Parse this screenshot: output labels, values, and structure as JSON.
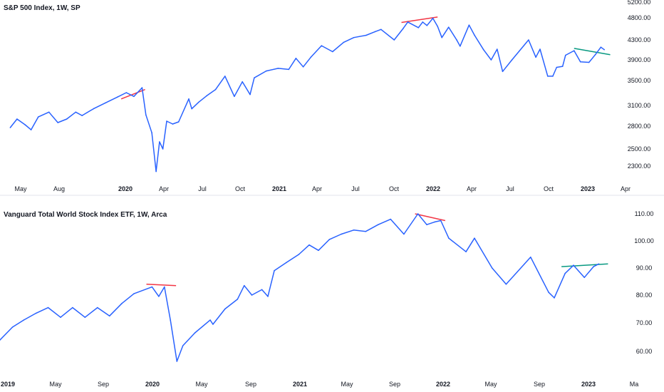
{
  "chart_data": [
    {
      "type": "line",
      "title": "S&P 500 Index, 1W, SP",
      "y_ticks": [
        "2300.00",
        "2500.00",
        "2800.00",
        "3100.00",
        "3500.00",
        "3900.00",
        "4300.00",
        "4800.00",
        "5200.00"
      ],
      "x_ticks": [
        {
          "label": "May",
          "bold": false
        },
        {
          "label": "Aug",
          "bold": false
        },
        {
          "label": "2020",
          "bold": true
        },
        {
          "label": "Apr",
          "bold": false
        },
        {
          "label": "Jul",
          "bold": false
        },
        {
          "label": "Oct",
          "bold": false
        },
        {
          "label": "2021",
          "bold": true
        },
        {
          "label": "Apr",
          "bold": false
        },
        {
          "label": "Jul",
          "bold": false
        },
        {
          "label": "Oct",
          "bold": false
        },
        {
          "label": "2022",
          "bold": true
        },
        {
          "label": "Apr",
          "bold": false
        },
        {
          "label": "Jul",
          "bold": false
        },
        {
          "label": "Oct",
          "bold": false
        },
        {
          "label": "2023",
          "bold": true
        },
        {
          "label": "Apr",
          "bold": false
        }
      ],
      "series": [
        {
          "color": "#2962ff",
          "points": [
            [
              "2019-04-15",
              2780
            ],
            [
              "2019-05-01",
              2900
            ],
            [
              "2019-05-20",
              2820
            ],
            [
              "2019-06-03",
              2750
            ],
            [
              "2019-06-20",
              2930
            ],
            [
              "2019-07-15",
              3000
            ],
            [
              "2019-08-05",
              2850
            ],
            [
              "2019-08-26",
              2900
            ],
            [
              "2019-09-16",
              3000
            ],
            [
              "2019-10-01",
              2950
            ],
            [
              "2019-10-28",
              3050
            ],
            [
              "2019-11-25",
              3140
            ],
            [
              "2019-12-23",
              3230
            ],
            [
              "2020-01-13",
              3300
            ],
            [
              "2020-01-31",
              3240
            ],
            [
              "2020-02-19",
              3380
            ],
            [
              "2020-02-28",
              2960
            ],
            [
              "2020-03-13",
              2710
            ],
            [
              "2020-03-23",
              2240
            ],
            [
              "2020-03-31",
              2590
            ],
            [
              "2020-04-08",
              2500
            ],
            [
              "2020-04-17",
              2870
            ],
            [
              "2020-05-01",
              2830
            ],
            [
              "2020-05-15",
              2860
            ],
            [
              "2020-06-08",
              3200
            ],
            [
              "2020-06-15",
              3050
            ],
            [
              "2020-07-01",
              3150
            ],
            [
              "2020-07-20",
              3250
            ],
            [
              "2020-08-10",
              3350
            ],
            [
              "2020-09-01",
              3580
            ],
            [
              "2020-09-23",
              3240
            ],
            [
              "2020-10-12",
              3480
            ],
            [
              "2020-10-30",
              3270
            ],
            [
              "2020-11-09",
              3550
            ],
            [
              "2020-12-07",
              3680
            ],
            [
              "2021-01-04",
              3730
            ],
            [
              "2021-01-29",
              3710
            ],
            [
              "2021-02-15",
              3930
            ],
            [
              "2021-03-04",
              3760
            ],
            [
              "2021-03-22",
              3950
            ],
            [
              "2021-04-16",
              4180
            ],
            [
              "2021-05-12",
              4060
            ],
            [
              "2021-06-07",
              4250
            ],
            [
              "2021-07-01",
              4350
            ],
            [
              "2021-07-30",
              4400
            ],
            [
              "2021-08-20",
              4480
            ],
            [
              "2021-09-03",
              4530
            ],
            [
              "2021-10-04",
              4300
            ],
            [
              "2021-10-25",
              4550
            ],
            [
              "2021-11-05",
              4700
            ],
            [
              "2021-11-30",
              4570
            ],
            [
              "2021-12-10",
              4700
            ],
            [
              "2021-12-20",
              4620
            ],
            [
              "2022-01-03",
              4790
            ],
            [
              "2022-01-14",
              4600
            ],
            [
              "2022-01-24",
              4350
            ],
            [
              "2022-02-09",
              4580
            ],
            [
              "2022-02-28",
              4300
            ],
            [
              "2022-03-08",
              4170
            ],
            [
              "2022-03-29",
              4630
            ],
            [
              "2022-04-11",
              4400
            ],
            [
              "2022-05-02",
              4100
            ],
            [
              "2022-05-20",
              3900
            ],
            [
              "2022-06-03",
              4110
            ],
            [
              "2022-06-16",
              3670
            ],
            [
              "2022-07-08",
              3900
            ],
            [
              "2022-08-16",
              4300
            ],
            [
              "2022-09-02",
              3950
            ],
            [
              "2022-09-12",
              4110
            ],
            [
              "2022-09-30",
              3580
            ],
            [
              "2022-10-12",
              3580
            ],
            [
              "2022-10-21",
              3750
            ],
            [
              "2022-11-04",
              3770
            ],
            [
              "2022-11-11",
              3990
            ],
            [
              "2022-12-01",
              4080
            ],
            [
              "2022-12-16",
              3860
            ],
            [
              "2023-01-05",
              3850
            ],
            [
              "2023-01-20",
              4000
            ],
            [
              "2023-02-02",
              4150
            ],
            [
              "2023-02-10",
              4100
            ]
          ]
        }
      ],
      "trendlines": [
        {
          "color": "#f23645",
          "from": [
            "2020-01-01",
            3200
          ],
          "to": [
            "2020-02-26",
            3350
          ]
        },
        {
          "color": "#f23645",
          "from": [
            "2021-10-21",
            4690
          ],
          "to": [
            "2022-01-14",
            4820
          ]
        },
        {
          "color": "#089981",
          "from": [
            "2022-12-01",
            4125
          ],
          "to": [
            "2023-02-24",
            4000
          ]
        }
      ]
    },
    {
      "type": "line",
      "title": "Vanguard Total World Stock Index ETF, 1W, Arca",
      "y_ticks": [
        "60.00",
        "70.00",
        "80.00",
        "90.00",
        "100.00",
        "110.00"
      ],
      "x_ticks": [
        {
          "label": "2019",
          "bold": true
        },
        {
          "label": "May",
          "bold": false
        },
        {
          "label": "Sep",
          "bold": false
        },
        {
          "label": "2020",
          "bold": true
        },
        {
          "label": "May",
          "bold": false
        },
        {
          "label": "Sep",
          "bold": false
        },
        {
          "label": "2021",
          "bold": true
        },
        {
          "label": "May",
          "bold": false
        },
        {
          "label": "Sep",
          "bold": false
        },
        {
          "label": "2022",
          "bold": true
        },
        {
          "label": "May",
          "bold": false
        },
        {
          "label": "Sep",
          "bold": false
        },
        {
          "label": "2023",
          "bold": true
        },
        {
          "label": "Ma",
          "bold": false
        }
      ],
      "series": [
        {
          "color": "#2962ff",
          "points": [
            [
              "2019-01-01",
              64.0
            ],
            [
              "2019-02-01",
              68.5
            ],
            [
              "2019-03-01",
              71.0
            ],
            [
              "2019-04-01",
              73.5
            ],
            [
              "2019-05-01",
              75.5
            ],
            [
              "2019-06-01",
              72.0
            ],
            [
              "2019-07-01",
              75.5
            ],
            [
              "2019-08-01",
              72.0
            ],
            [
              "2019-09-01",
              75.5
            ],
            [
              "2019-10-01",
              72.5
            ],
            [
              "2019-11-01",
              77.0
            ],
            [
              "2019-12-01",
              80.5
            ],
            [
              "2020-01-15",
              83.0
            ],
            [
              "2020-02-01",
              79.5
            ],
            [
              "2020-02-15",
              83.0
            ],
            [
              "2020-03-01",
              71.0
            ],
            [
              "2020-03-17",
              56.5
            ],
            [
              "2020-04-01",
              62.0
            ],
            [
              "2020-05-01",
              66.5
            ],
            [
              "2020-06-08",
              71.0
            ],
            [
              "2020-06-15",
              69.5
            ],
            [
              "2020-07-15",
              75.0
            ],
            [
              "2020-08-15",
              78.5
            ],
            [
              "2020-09-01",
              83.5
            ],
            [
              "2020-09-20",
              80.0
            ],
            [
              "2020-10-15",
              82.0
            ],
            [
              "2020-10-30",
              79.5
            ],
            [
              "2020-11-15",
              89.0
            ],
            [
              "2020-12-15",
              92.0
            ],
            [
              "2021-01-15",
              95.0
            ],
            [
              "2021-02-10",
              98.5
            ],
            [
              "2021-03-05",
              96.5
            ],
            [
              "2021-04-01",
              100.5
            ],
            [
              "2021-05-01",
              102.5
            ],
            [
              "2021-06-01",
              104.0
            ],
            [
              "2021-07-01",
              103.5
            ],
            [
              "2021-08-01",
              106.0
            ],
            [
              "2021-09-01",
              108.0
            ],
            [
              "2021-10-04",
              102.5
            ],
            [
              "2021-11-08",
              110.0
            ],
            [
              "2021-11-30",
              106.0
            ],
            [
              "2021-12-20",
              107.0
            ],
            [
              "2022-01-04",
              107.5
            ],
            [
              "2022-01-24",
              101.0
            ],
            [
              "2022-03-08",
              96.0
            ],
            [
              "2022-03-29",
              101.0
            ],
            [
              "2022-05-12",
              90.0
            ],
            [
              "2022-06-16",
              84.0
            ],
            [
              "2022-08-16",
              94.0
            ],
            [
              "2022-09-30",
              81.0
            ],
            [
              "2022-10-14",
              79.0
            ],
            [
              "2022-11-10",
              88.0
            ],
            [
              "2022-12-01",
              91.0
            ],
            [
              "2022-12-28",
              86.5
            ],
            [
              "2023-01-20",
              90.5
            ],
            [
              "2023-02-02",
              91.5
            ]
          ]
        }
      ],
      "trendlines": [
        {
          "color": "#f23645",
          "from": [
            "2020-01-01",
            84.0
          ],
          "to": [
            "2020-03-15",
            83.5
          ]
        },
        {
          "color": "#f23645",
          "from": [
            "2021-11-01",
            110.0
          ],
          "to": [
            "2022-01-15",
            107.5
          ]
        },
        {
          "color": "#089981",
          "from": [
            "2022-11-01",
            90.5
          ],
          "to": [
            "2023-02-25",
            91.5
          ]
        }
      ]
    }
  ]
}
